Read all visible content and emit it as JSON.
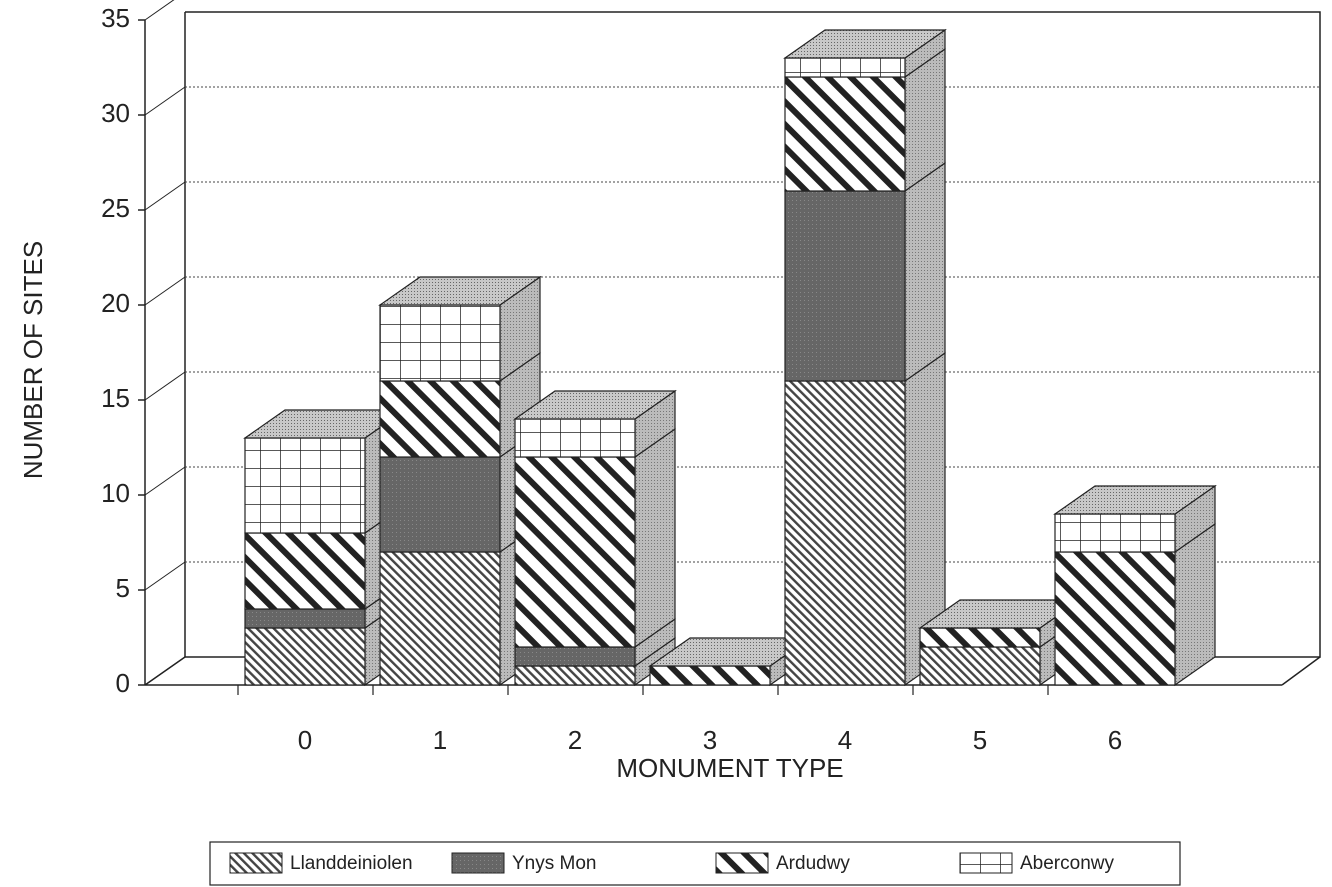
{
  "chart_data": {
    "type": "bar3d-stacked",
    "xlabel": "MONUMENT TYPE",
    "ylabel": "NUMBER OF SITES",
    "categories": [
      "0",
      "1",
      "2",
      "3",
      "4",
      "5",
      "6"
    ],
    "series": [
      {
        "name": "Llanddeiniolen",
        "color": "#9a9a9a",
        "values": [
          3,
          7,
          1,
          0,
          16,
          2,
          0
        ]
      },
      {
        "name": "Ynys Mon",
        "color": "#5a5a5a",
        "values": [
          1,
          5,
          1,
          0,
          10,
          0,
          0
        ]
      },
      {
        "name": "Ardudwy",
        "color": "#ffffff",
        "values": [
          4,
          4,
          10,
          1,
          6,
          1,
          7
        ]
      },
      {
        "name": "Aberconwy",
        "color": "#ffffff",
        "values": [
          5,
          4,
          2,
          0,
          1,
          0,
          2
        ]
      }
    ],
    "ylim": [
      0,
      35
    ],
    "yticks": [
      0,
      5,
      10,
      15,
      20,
      25,
      30,
      35
    ],
    "grid": true
  }
}
